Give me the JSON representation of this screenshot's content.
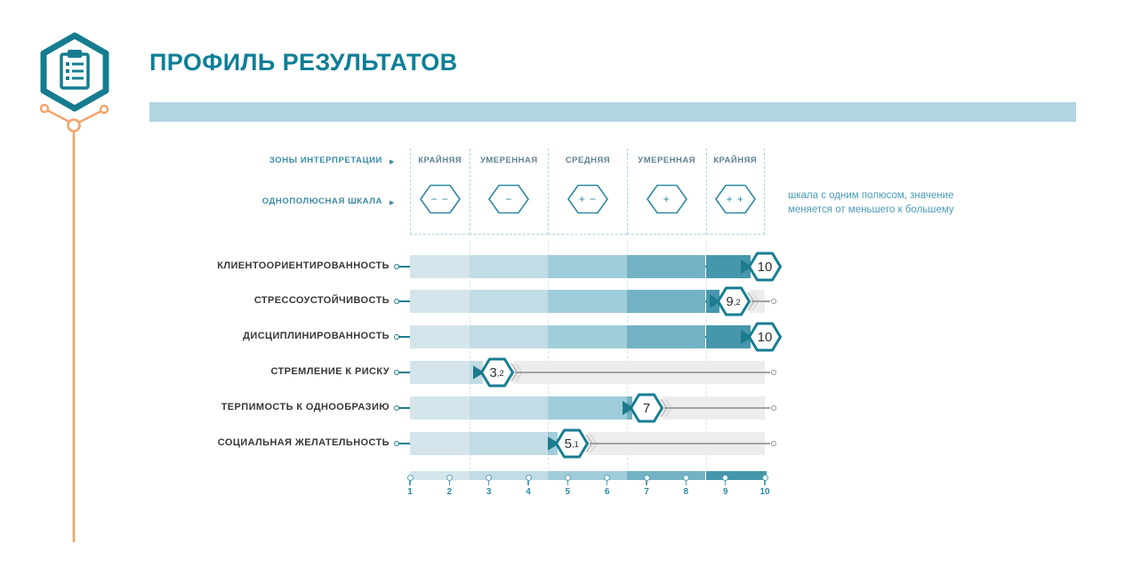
{
  "header": {
    "title": "ПРОФИЛЬ РЕЗУЛЬТАТОВ"
  },
  "legend": {
    "zones_row_label": "ЗОНЫ ИНТЕРПРЕТАЦИИ",
    "scale_row_label": "ОДНОПОЛЮСНАЯ ШКАЛА",
    "arrow": "▶",
    "zones": [
      {
        "name": "КРАЙНЯЯ",
        "sign": "− −"
      },
      {
        "name": "УМЕРЕННАЯ",
        "sign": "−"
      },
      {
        "name": "СРЕДНЯЯ",
        "sign": "+ −"
      },
      {
        "name": "УМЕРЕННАЯ",
        "sign": "+"
      },
      {
        "name": "КРАЙНЯЯ",
        "sign": "+ +"
      }
    ],
    "note_line1": "шкала с одним полюсом, значение",
    "note_line2": "меняется от меньшего к большему"
  },
  "chart_data": {
    "type": "bar",
    "orientation": "horizontal",
    "title": "ПРОФИЛЬ РЕЗУЛЬТАТОВ",
    "categories": [
      "КЛИЕНТООРИЕНТИРОВАННОСТЬ",
      "СТРЕССОУСТОЙЧИВОСТЬ",
      "ДИСЦИПЛИНИРОВАННОСТЬ",
      "СТРЕМЛЕНИЕ К РИСКУ",
      "ТЕРПИМОСТЬ К ОДНООБРАЗИЮ",
      "СОЦИАЛЬНАЯ ЖЕЛАТЕЛЬНОСТЬ"
    ],
    "values": [
      10,
      9.2,
      10,
      3.2,
      7,
      5.1
    ],
    "value_labels": [
      "10",
      "9,2",
      "10",
      "3,2",
      "7",
      "5,1"
    ],
    "xlim": [
      1,
      10
    ],
    "ticks": [
      "1",
      "2",
      "3",
      "4",
      "5",
      "6",
      "7",
      "8",
      "9",
      "10"
    ],
    "zone_boundaries": [
      2.5,
      4.5,
      6.5,
      8.5
    ],
    "grid": true,
    "legend_position": "top"
  },
  "colors": {
    "title": "#0d7f97",
    "band": "#b3d4e2",
    "segments": [
      "#d3e5eb",
      "#c2dce5",
      "#a0cdd9",
      "#73b2c4",
      "#4697ac"
    ],
    "spine": "#1d7b8f",
    "hex_border": "#177d91",
    "tail": "#ededed",
    "orange": "#f3a469"
  },
  "icons": {
    "brand": "clipboard-hexagon-icon",
    "connector": "branch-line-decoration"
  }
}
